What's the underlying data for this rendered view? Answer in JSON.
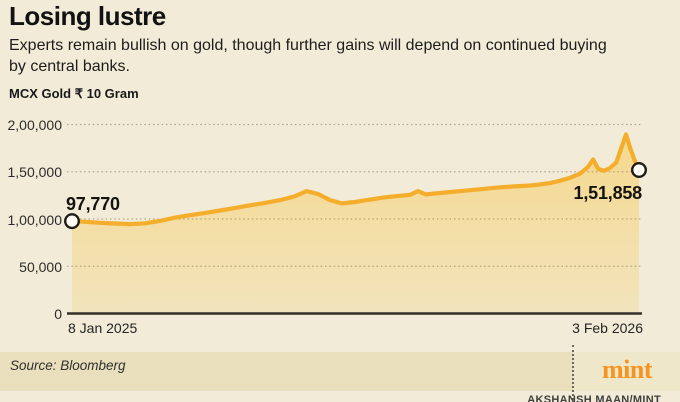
{
  "header": {
    "title": "Losing lustre",
    "subtitle": "Experts remain bullish on gold, though further gains will depend on continued buying by central banks.",
    "unit_label": "MCX Gold ₹ 10 Gram"
  },
  "chart_data": {
    "type": "area",
    "title": "MCX Gold ₹ 10 Gram",
    "x_axis": {
      "start_label": "8 Jan 2025",
      "end_label": "3 Feb 2026"
    },
    "y_axis": {
      "min": 0,
      "max": 200000,
      "ticks": [
        {
          "value": 0,
          "label": "0"
        },
        {
          "value": 50000,
          "label": "50,000"
        },
        {
          "value": 100000,
          "label": "1,00,000"
        },
        {
          "value": 150000,
          "label": "1,50,000"
        },
        {
          "value": 200000,
          "label": "2,00,000"
        }
      ],
      "grid": "dotted"
    },
    "series": [
      {
        "name": "MCX Gold price (₹ per 10 gram)",
        "t": [
          0,
          0.023,
          0.049,
          0.076,
          0.102,
          0.129,
          0.155,
          0.182,
          0.208,
          0.235,
          0.261,
          0.287,
          0.314,
          0.34,
          0.367,
          0.393,
          0.414,
          0.434,
          0.455,
          0.476,
          0.499,
          0.526,
          0.552,
          0.578,
          0.596,
          0.61,
          0.624,
          0.649,
          0.675,
          0.702,
          0.728,
          0.755,
          0.781,
          0.808,
          0.825,
          0.843,
          0.861,
          0.878,
          0.896,
          0.91,
          0.919,
          0.928,
          0.938,
          0.949,
          0.96,
          0.967,
          0.977,
          0.984,
          0.991,
          0.996,
          1.0
        ],
        "values": [
          97770,
          97000,
          96000,
          95200,
          94600,
          95500,
          98000,
          101500,
          104000,
          106500,
          109000,
          111500,
          114500,
          117000,
          120000,
          124000,
          129500,
          126500,
          120000,
          116500,
          118000,
          120500,
          123000,
          124500,
          125500,
          129500,
          126000,
          127500,
          129000,
          130500,
          132000,
          133500,
          134500,
          135500,
          136500,
          138000,
          140500,
          143500,
          148000,
          155000,
          163000,
          153000,
          151000,
          154000,
          160000,
          172000,
          189500,
          176000,
          164000,
          157000,
          151858
        ]
      }
    ],
    "annotations": {
      "start": {
        "label": "97,770",
        "value": 97770,
        "date": "8 Jan 2025"
      },
      "end": {
        "label": "1,51,858",
        "value": 151858,
        "date": "3 Feb 2026"
      }
    },
    "colors": {
      "line": "#f4ae2c",
      "area_top": "#f6d88e",
      "area_bottom": "#f1e4bc",
      "grid": "#857a5e",
      "axis": "#33302a",
      "marker_fill": "#fffdf4",
      "marker_stroke": "#1d1b18",
      "background": "#f1ebd7"
    }
  },
  "footer": {
    "source": "Source: Bloomberg",
    "brand": "mint",
    "credit": "AKSHANSH MAAN/MINT"
  }
}
